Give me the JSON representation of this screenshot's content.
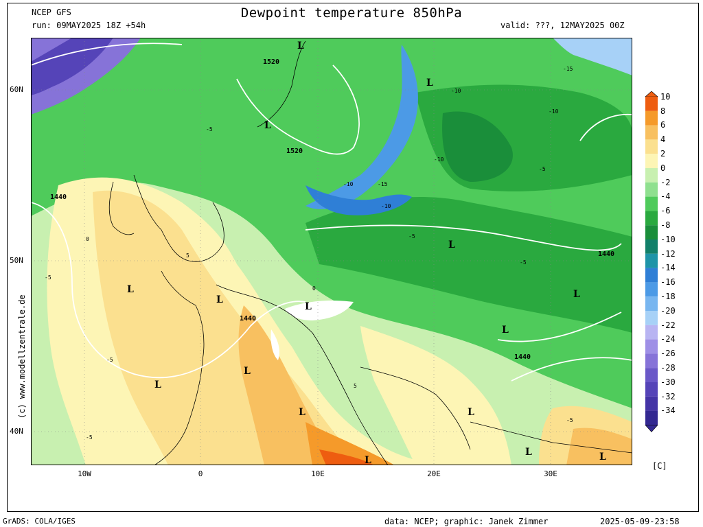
{
  "header": {
    "model": "NCEP GFS",
    "run": "run: 09MAY2025 18Z +54h",
    "title": "Dewpoint temperature 850hPa",
    "valid": "valid: ???, 12MAY2025 00Z"
  },
  "axes": {
    "lat_labels": [
      "60N",
      "50N",
      "40N"
    ],
    "lon_labels": [
      "10W",
      "0",
      "10E",
      "20E",
      "30E"
    ]
  },
  "side_credit": "(c) www.modellzentrale.de",
  "colorbar": {
    "unit": "[C]",
    "levels": [
      "10",
      "8",
      "6",
      "4",
      "2",
      "0",
      "-2",
      "-4",
      "-6",
      "-8",
      "-10",
      "-12",
      "-14",
      "-16",
      "-18",
      "-20",
      "-22",
      "-24",
      "-26",
      "-28",
      "-30",
      "-32",
      "-34"
    ],
    "colors": [
      "#ee5d10",
      "#f59a2a",
      "#f8c060",
      "#fbe08f",
      "#fdf5b5",
      "#c8f0b0",
      "#8fe08f",
      "#4fcb5b",
      "#2aa93f",
      "#1a8e3a",
      "#12806a",
      "#1e94a8",
      "#2f7fd6",
      "#4c9ae6",
      "#78b6f0",
      "#a7d1f7",
      "#b8b4f2",
      "#9e8fe6",
      "#8673d8",
      "#6a58c8",
      "#5544b8",
      "#4434a6",
      "#332891"
    ]
  },
  "map_labels": {
    "pressure_values": [
      "1520",
      "1520",
      "1440",
      "1440",
      "1440",
      "1440"
    ],
    "low_marker": "L",
    "contour_values": [
      "-5",
      "-10",
      "-15",
      "0",
      "5"
    ]
  },
  "footer": {
    "left": "GrADS: COLA/IGES",
    "middle": "data: NCEP; graphic: Janek Zimmer",
    "right": "2025-05-09-23:58"
  }
}
